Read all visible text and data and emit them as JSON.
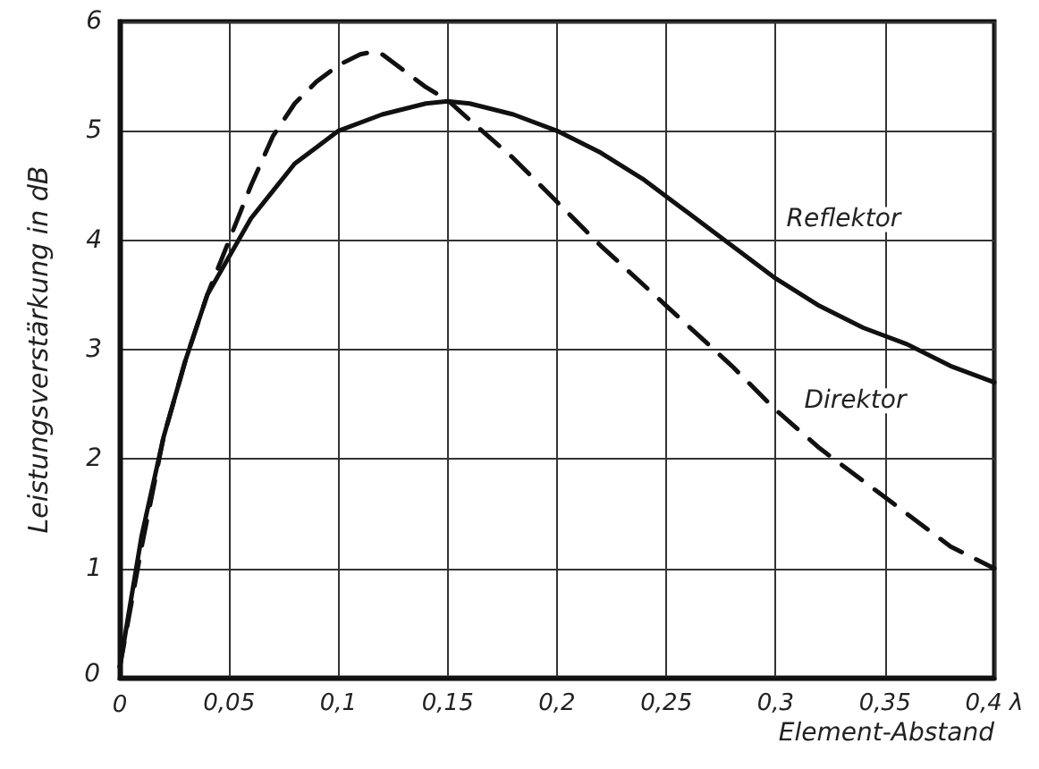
{
  "chart_data": {
    "type": "line",
    "xlabel": "Element-Abstand",
    "ylabel": "Leistungsverstärkung in dB",
    "xlim": [
      0,
      0.4
    ],
    "ylim": [
      0,
      6
    ],
    "xticks": [
      0,
      {
        "value": 0.05,
        "label": "0,05"
      },
      {
        "value": 0.1,
        "label": "0,1"
      },
      {
        "value": 0.15,
        "label": "0,15"
      },
      {
        "value": 0.2,
        "label": "0,2"
      },
      {
        "value": 0.25,
        "label": "0,25"
      },
      {
        "value": 0.3,
        "label": "0,3"
      },
      {
        "value": 0.35,
        "label": "0,35"
      },
      {
        "value": 0.4,
        "label": "0,4 λ"
      }
    ],
    "yticks": [
      0,
      1,
      2,
      3,
      4,
      5,
      6
    ],
    "grid": true,
    "legend": false,
    "marker": "none",
    "series": [
      {
        "name": "Reflektor",
        "color": "#111111",
        "line_style": "solid",
        "x": [
          0,
          0.01,
          0.02,
          0.03,
          0.04,
          0.05,
          0.06,
          0.07,
          0.08,
          0.09,
          0.1,
          0.12,
          0.14,
          0.15,
          0.16,
          0.18,
          0.2,
          0.22,
          0.24,
          0.26,
          0.28,
          0.3,
          0.32,
          0.34,
          0.36,
          0.38,
          0.4
        ],
        "values": [
          0.1,
          1.3,
          2.2,
          2.9,
          3.5,
          3.85,
          4.2,
          4.45,
          4.7,
          4.85,
          5.0,
          5.15,
          5.25,
          5.27,
          5.25,
          5.15,
          5.0,
          4.8,
          4.55,
          4.25,
          3.95,
          3.65,
          3.4,
          3.2,
          3.05,
          2.85,
          2.7
        ]
      },
      {
        "name": "Direktor",
        "color": "#111111",
        "line_style": "dashed",
        "x": [
          0,
          0.01,
          0.02,
          0.03,
          0.04,
          0.05,
          0.06,
          0.07,
          0.08,
          0.09,
          0.1,
          0.11,
          0.115,
          0.12,
          0.13,
          0.14,
          0.15,
          0.16,
          0.18,
          0.2,
          0.22,
          0.25,
          0.28,
          0.3,
          0.32,
          0.34,
          0.36,
          0.38,
          0.4
        ],
        "values": [
          0.1,
          1.2,
          2.2,
          2.9,
          3.5,
          4.0,
          4.5,
          4.95,
          5.25,
          5.45,
          5.6,
          5.7,
          5.72,
          5.7,
          5.55,
          5.4,
          5.28,
          5.1,
          4.75,
          4.35,
          3.95,
          3.4,
          2.85,
          2.45,
          2.1,
          1.8,
          1.5,
          1.2,
          1.0
        ]
      }
    ]
  }
}
